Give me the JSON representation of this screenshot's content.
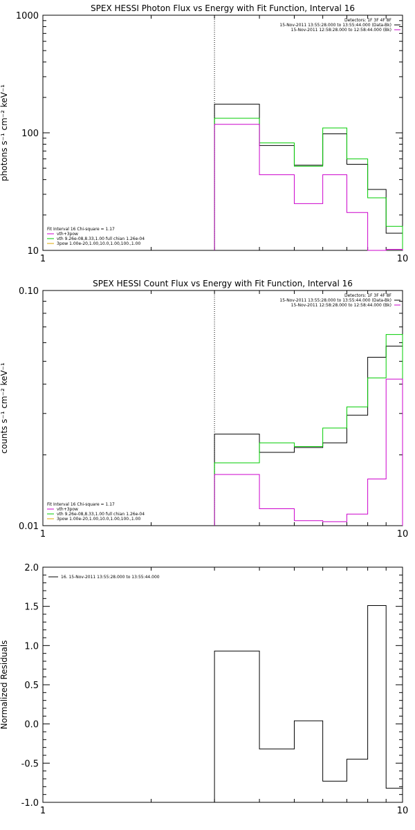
{
  "chart_data": [
    {
      "type": "line",
      "title": "SPEX HESSI Photon Flux vs Energy with Fit Function, Interval 16",
      "ylabel": "photons s⁻¹ cm⁻² keV⁻¹",
      "xlabel": "",
      "xscale": "log",
      "yscale": "log",
      "xlim": [
        1,
        10
      ],
      "ylim": [
        10,
        1000
      ],
      "xticks": [
        1,
        10
      ],
      "xtick_labels": [
        "1",
        "10"
      ],
      "yticks": [
        10,
        100,
        1000
      ],
      "ytick_labels": [
        "10",
        "100",
        "1000"
      ],
      "marker": {
        "x": 3,
        "style": "dotted"
      },
      "legend_top_right": [
        "Detectors: 1F 3F 4F 8F",
        "15-Nov-2011 13:55:28.000 to 13:55:44.000 (Data-Bk)",
        "15-Nov-2011 12:58:28.000 to 12:58:44.000 (Bk)"
      ],
      "legend_top_right_colors": [
        "#000000",
        "#000000",
        "#cc00cc"
      ],
      "legend_bottom_left": [
        "Fit Interval 16   Chi-square = 1.17",
        "vth+3pow",
        "vth 9.26e-08,8.33,1.00  full chian 1.26e-04",
        "3pow 1.00e-20,1.00,10.0,1.00,100.,1.00"
      ],
      "legend_bottom_left_colors": [
        "#000000",
        "#cc00cc",
        "#00cc00",
        "#ddaa00"
      ],
      "edges": [
        3,
        4,
        5,
        6,
        7,
        8,
        9,
        10
      ],
      "series": [
        {
          "name": "15-Nov-2011 13:55:28.000 to 13:55:44.000 (Data-Bk)",
          "color": "#000000",
          "values": [
            175,
            78,
            53,
            98,
            54,
            33,
            14
          ]
        },
        {
          "name": "vth+3pow",
          "color": "#00cc00",
          "values": [
            133,
            82,
            52,
            110,
            60,
            28,
            16
          ]
        },
        {
          "name": "15-Nov-2011 12:58:28.000 to 12:58:44.000 (Bk)",
          "color": "#cc00cc",
          "values": [
            118,
            44,
            25,
            44,
            21,
            10,
            10.2
          ]
        }
      ]
    },
    {
      "type": "line",
      "title": "SPEX HESSI Count Flux vs Energy with Fit Function, Interval 16",
      "ylabel": "counts s⁻¹ cm⁻² keV⁻¹",
      "xlabel": "",
      "xscale": "log",
      "yscale": "log",
      "xlim": [
        1,
        10
      ],
      "ylim": [
        0.01,
        0.1
      ],
      "xticks": [
        1,
        10
      ],
      "xtick_labels": [
        "1",
        "10"
      ],
      "yticks": [
        0.01,
        0.1
      ],
      "ytick_labels": [
        "0.01",
        "0.10"
      ],
      "marker": {
        "x": 3,
        "style": "dotted"
      },
      "legend_top_right": [
        "Detectors: 1F 3F 4F 8F",
        "15-Nov-2011 13:55:28.000 to 13:55:44.000 (Data-Bk)",
        "15-Nov-2011 12:58:28.000 to 12:58:44.000 (Bk)"
      ],
      "legend_top_right_colors": [
        "#000000",
        "#000000",
        "#cc00cc"
      ],
      "legend_bottom_left": [
        "Fit Interval 16   Chi-square = 1.17",
        "vth+3pow",
        "vth 9.26e-08,8.33,1.00  full chian 1.26e-04",
        "3pow 1.00e-20,1.00,10.0,1.00,100.,1.00"
      ],
      "legend_bottom_left_colors": [
        "#000000",
        "#cc00cc",
        "#00cc00",
        "#ddaa00"
      ],
      "edges": [
        3,
        4,
        5,
        6,
        7,
        8,
        9,
        10
      ],
      "series": [
        {
          "name": "15-Nov-2011 13:55:28.000 to 13:55:44.000 (Data-Bk)",
          "color": "#000000",
          "values": [
            0.0245,
            0.0205,
            0.0215,
            0.0225,
            0.0295,
            0.052,
            0.058
          ]
        },
        {
          "name": "vth+3pow",
          "color": "#00cc00",
          "values": [
            0.0185,
            0.0225,
            0.0217,
            0.026,
            0.032,
            0.0425,
            0.065
          ]
        },
        {
          "name": "15-Nov-2011 12:58:28.000 to 12:58:44.000 (Bk)",
          "color": "#cc00cc",
          "values": [
            0.0165,
            0.0118,
            0.0105,
            0.0104,
            0.0112,
            0.0158,
            0.042
          ]
        }
      ]
    },
    {
      "type": "line",
      "title": "",
      "ylabel": "Normalized Residuals",
      "xlabel": "",
      "xscale": "log",
      "yscale": "linear",
      "xlim": [
        1,
        10
      ],
      "ylim": [
        -1.0,
        2.0
      ],
      "xticks": [
        1,
        10
      ],
      "xtick_labels": [
        "1",
        "10"
      ],
      "yticks": [
        -1.0,
        -0.5,
        0.0,
        0.5,
        1.0,
        1.5,
        2.0
      ],
      "ytick_labels": [
        "-1.0",
        "-0.5",
        "0.0",
        "0.5",
        "1.0",
        "1.5",
        "2.0"
      ],
      "legend_top_left": [
        "16. 15-Nov-2011 13:55:28.000 to 13:55:44.000"
      ],
      "legend_top_left_colors": [
        "#000000"
      ],
      "edges": [
        3,
        4,
        5,
        6,
        7,
        8,
        9,
        10
      ],
      "series": [
        {
          "name": "16. 15-Nov-2011 13:55:28.000 to 13:55:44.000",
          "color": "#000000",
          "values": [
            0.93,
            -0.32,
            0.04,
            -0.73,
            -0.45,
            1.51,
            -0.82
          ]
        }
      ]
    }
  ]
}
